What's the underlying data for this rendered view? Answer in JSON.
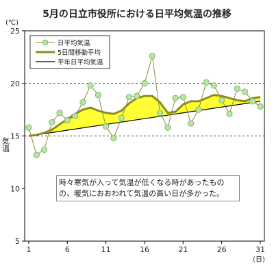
{
  "title": "5月の日立市役所における日平均気温の推移",
  "note": "時々寒気が入って気温が低くなる時があったものの、暖気におおわれて気温の高い日が多かった。",
  "chart_data": {
    "type": "line",
    "title": "5月の日立市役所における日平均気温の推移",
    "ylabel": "気温",
    "yunit": "(℃)",
    "xunit": "(日)",
    "ylim": [
      5,
      25
    ],
    "yticks": [
      5,
      10,
      15,
      20,
      25
    ],
    "xlim": [
      1,
      31
    ],
    "xticks": [
      1,
      6,
      11,
      16,
      21,
      26,
      31
    ],
    "grid": "horizontal dashed at 15 and 20",
    "legend": "top-left",
    "series": [
      {
        "name": "日平均気温",
        "style": "thin olive line with light-green circle markers",
        "color": "#8a8a3a",
        "marker_color": "#b4e6a0",
        "x": [
          1,
          2,
          3,
          4,
          5,
          6,
          7,
          8,
          9,
          10,
          11,
          12,
          13,
          14,
          15,
          16,
          17,
          18,
          19,
          20,
          21,
          22,
          23,
          24,
          25,
          26,
          27,
          28,
          29,
          30,
          31
        ],
        "values": [
          15.8,
          13.2,
          13.7,
          16.3,
          17.2,
          16.5,
          16.9,
          18.2,
          19.8,
          18.9,
          15.9,
          14.8,
          16.7,
          18.7,
          18.8,
          20.0,
          22.6,
          17.2,
          15.8,
          18.6,
          18.7,
          16.2,
          17.5,
          20.1,
          19.8,
          18.4,
          17.1,
          19.5,
          19.2,
          18.3,
          17.8
        ]
      },
      {
        "name": "5日間移動平均",
        "style": "thick olive line",
        "color": "#8c8c1e",
        "x": [
          1,
          2,
          3,
          4,
          5,
          6,
          7,
          8,
          9,
          10,
          11,
          12,
          13,
          14,
          15,
          16,
          17,
          18,
          19,
          20,
          21,
          22,
          23,
          24,
          25,
          26,
          27,
          28,
          29,
          30,
          31
        ],
        "values": [
          15.0,
          15.1,
          15.3,
          15.6,
          16.1,
          16.6,
          17.1,
          17.5,
          17.7,
          17.4,
          17.2,
          17.1,
          17.4,
          18.1,
          18.6,
          18.8,
          18.8,
          18.2,
          17.2,
          17.3,
          18.0,
          18.3,
          18.3,
          18.6,
          18.9,
          18.8,
          18.6,
          18.4,
          18.3,
          18.6,
          18.7
        ]
      },
      {
        "name": "平年日平均気温",
        "style": "thin black line",
        "color": "#000000",
        "x": [
          1,
          31
        ],
        "values": [
          15.0,
          18.3
        ]
      }
    ],
    "fill": {
      "between": [
        "5日間移動平均",
        "平年日平均気温"
      ],
      "color": "#ffff33"
    }
  }
}
